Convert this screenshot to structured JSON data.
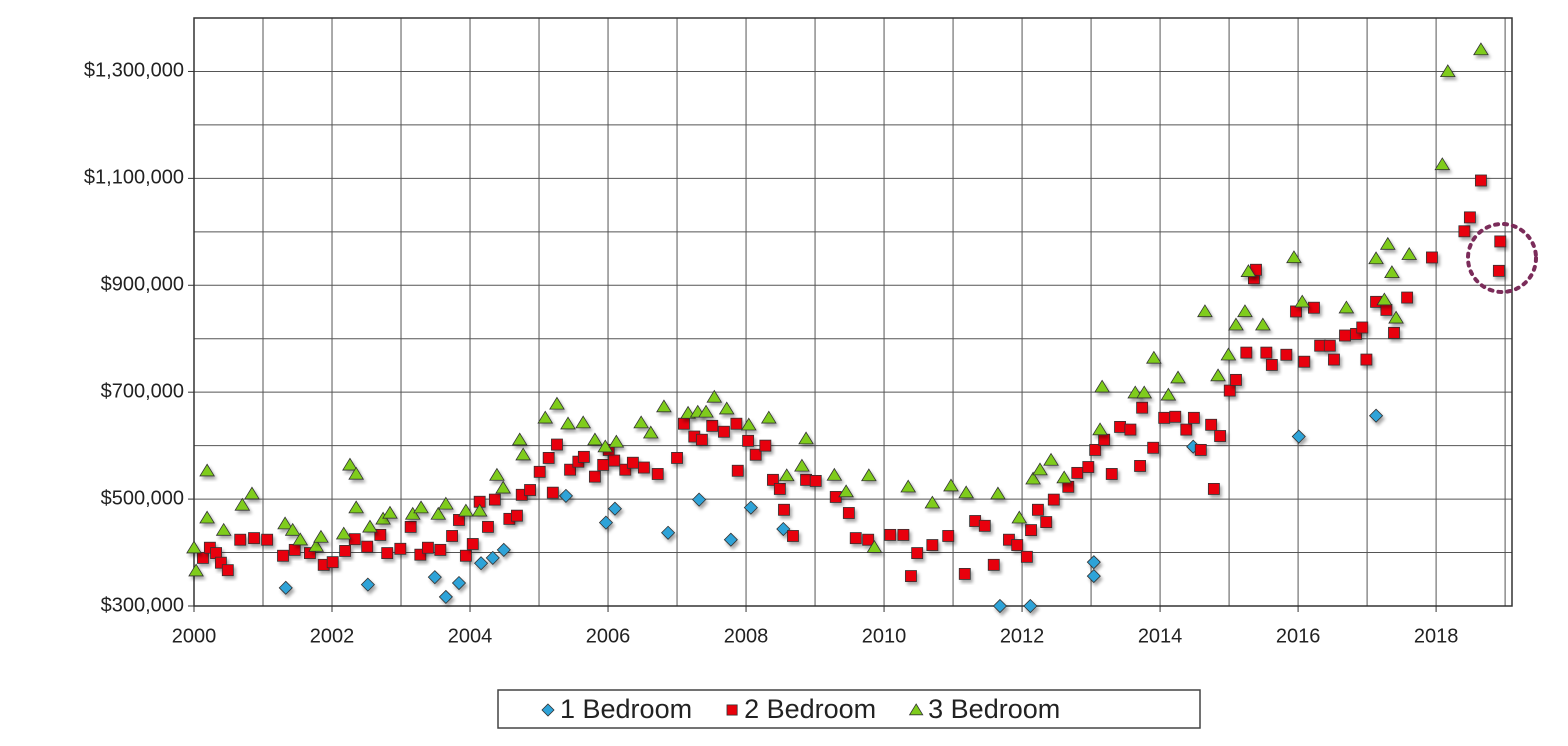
{
  "chart_data": {
    "type": "scatter",
    "xlim": [
      2000,
      2019.1
    ],
    "xticks": [
      2000,
      2002,
      2004,
      2006,
      2008,
      2010,
      2012,
      2014,
      2016,
      2018
    ],
    "xminor": [
      2001,
      2003,
      2005,
      2007,
      2009,
      2011,
      2013,
      2015,
      2017,
      2019
    ],
    "ylim": [
      300000,
      1400000
    ],
    "yticks": [
      {
        "value": 300000,
        "label": "$300,000"
      },
      {
        "value": 500000,
        "label": "$500,000"
      },
      {
        "value": 700000,
        "label": "$700,000"
      },
      {
        "value": 900000,
        "label": "$900,000"
      },
      {
        "value": 1100000,
        "label": "$1,100,000"
      },
      {
        "value": 1300000,
        "label": "$1,300,000"
      }
    ],
    "yminor": [
      400000,
      600000,
      800000,
      1000000,
      1200000
    ],
    "grid": true,
    "legend": "bottom",
    "series": [
      {
        "name": "1 Bedroom",
        "color": "#2ea3d8",
        "marker": "diamond",
        "x": [
          2001.33,
          2002.52,
          2003.49,
          2003.65,
          2003.84,
          2004.16,
          2004.33,
          2004.49,
          2005.39,
          2005.97,
          2006.1,
          2006.87,
          2007.32,
          2007.78,
          2008.07,
          2008.54,
          2011.68,
          2012.12,
          2013.04,
          2013.04,
          2014.48,
          2016.01,
          2017.13
        ],
        "values": [
          334000,
          340000,
          354000,
          317000,
          343000,
          380000,
          390000,
          405000,
          506000,
          456000,
          482000,
          437000,
          499000,
          424000,
          484000,
          444000,
          300000,
          300000,
          382000,
          356000,
          598000,
          617000,
          656000
        ]
      },
      {
        "name": "2 Bedroom",
        "color": "#e8000b",
        "marker": "square",
        "x": [
          2000.13,
          2000.23,
          2000.32,
          2000.39,
          2000.49,
          2000.67,
          2000.87,
          2001.06,
          2001.29,
          2001.46,
          2001.68,
          2001.88,
          2002.01,
          2002.19,
          2002.33,
          2002.51,
          2002.7,
          2002.8,
          2002.99,
          2003.14,
          2003.28,
          2003.39,
          2003.57,
          2003.74,
          2003.84,
          2003.94,
          2004.04,
          2004.14,
          2004.26,
          2004.36,
          2004.57,
          2004.68,
          2004.75,
          2004.87,
          2005.01,
          2005.14,
          2005.2,
          2005.26,
          2005.45,
          2005.57,
          2005.65,
          2005.81,
          2005.93,
          2006.01,
          2006.09,
          2006.25,
          2006.36,
          2006.52,
          2006.72,
          2007,
          2007.1,
          2007.25,
          2007.36,
          2007.51,
          2007.68,
          2007.86,
          2007.88,
          2008.03,
          2008.14,
          2008.28,
          2008.39,
          2008.49,
          2008.55,
          2008.68,
          2008.87,
          2009.01,
          2009.3,
          2009.49,
          2009.59,
          2009.77,
          2010.09,
          2010.28,
          2010.39,
          2010.48,
          2010.7,
          2010.93,
          2011.17,
          2011.32,
          2011.46,
          2011.59,
          2011.81,
          2011.93,
          2012.07,
          2012.13,
          2012.23,
          2012.35,
          2012.46,
          2012.67,
          2012.8,
          2012.96,
          2013.06,
          2013.19,
          2013.3,
          2013.42,
          2013.57,
          2013.71,
          2013.74,
          2013.9,
          2014.06,
          2014.22,
          2014.38,
          2014.49,
          2014.59,
          2014.74,
          2014.78,
          2014.87,
          2015.01,
          2015.1,
          2015.25,
          2015.36,
          2015.39,
          2015.54,
          2015.62,
          2015.83,
          2015.97,
          2016.09,
          2016.23,
          2016.32,
          2016.46,
          2016.52,
          2016.68,
          2016.84,
          2016.93,
          2016.99,
          2017.13,
          2017.28,
          2017.39,
          2017.58,
          2017.94,
          2018.41,
          2018.49,
          2018.65,
          2018.93,
          2018.91
        ],
        "values": [
          390000,
          409000,
          399000,
          381000,
          367000,
          424000,
          427000,
          424000,
          394000,
          405000,
          399000,
          377000,
          382000,
          403000,
          425000,
          411000,
          433000,
          399000,
          407000,
          448000,
          396000,
          409000,
          405000,
          431000,
          461000,
          394000,
          416000,
          495000,
          448000,
          499000,
          463000,
          469000,
          508000,
          517000,
          551000,
          577000,
          512000,
          602000,
          555000,
          570000,
          579000,
          542000,
          564000,
          592000,
          572000,
          555000,
          568000,
          559000,
          547000,
          577000,
          641000,
          617000,
          611000,
          637000,
          626000,
          641000,
          553000,
          609000,
          583000,
          600000,
          536000,
          519000,
          480000,
          431000,
          536000,
          534000,
          504000,
          474000,
          427000,
          424000,
          433000,
          433000,
          356000,
          399000,
          414000,
          431000,
          360000,
          459000,
          450000,
          377000,
          424000,
          414000,
          392000,
          442000,
          480000,
          457000,
          499000,
          523000,
          549000,
          560000,
          592000,
          611000,
          547000,
          635000,
          630000,
          562000,
          671000,
          596000,
          652000,
          654000,
          630000,
          652000,
          592000,
          639000,
          519000,
          618000,
          703000,
          723000,
          774000,
          913000,
          929000,
          774000,
          751000,
          770000,
          851000,
          757000,
          858000,
          787000,
          787000,
          761000,
          806000,
          809000,
          821000,
          761000,
          869000,
          854000,
          811000,
          877000,
          952000,
          1001000,
          1027000,
          1096000,
          982000,
          927000
        ]
      },
      {
        "name": "3 Bedroom",
        "color": "#7fcc1c",
        "marker": "triangle",
        "x": [
          2000,
          2000.03,
          2000.19,
          2000.19,
          2000.43,
          2000.7,
          2000.84,
          2001.32,
          2001.43,
          2001.54,
          2001.77,
          2001.84,
          2002.17,
          2002.26,
          2002.35,
          2002.35,
          2002.55,
          2002.74,
          2002.84,
          2003.17,
          2003.29,
          2003.54,
          2003.65,
          2003.94,
          2004.14,
          2004.39,
          2004.48,
          2004.72,
          2004.77,
          2005.09,
          2005.26,
          2005.42,
          2005.64,
          2005.81,
          2005.96,
          2006.12,
          2006.48,
          2006.62,
          2006.81,
          2007.16,
          2007.3,
          2007.42,
          2007.54,
          2007.72,
          2008.04,
          2008.33,
          2008.59,
          2008.81,
          2008.87,
          2009.28,
          2009.45,
          2009.78,
          2009.86,
          2010.35,
          2010.7,
          2010.97,
          2011.19,
          2011.65,
          2011.96,
          2012.16,
          2012.26,
          2012.42,
          2012.61,
          2013.13,
          2013.16,
          2013.64,
          2013.77,
          2013.91,
          2014.12,
          2014.26,
          2014.65,
          2014.84,
          2014.99,
          2015.1,
          2015.23,
          2015.28,
          2015.49,
          2015.94,
          2016.06,
          2016.7,
          2017.13,
          2017.25,
          2017.3,
          2017.36,
          2017.42,
          2017.61,
          2018.09,
          2018.17,
          2018.65
        ],
        "values": [
          409000,
          366000,
          553000,
          465000,
          442000,
          489000,
          510000,
          454000,
          442000,
          424000,
          412000,
          429000,
          435000,
          564000,
          547000,
          484000,
          448000,
          463000,
          474000,
          472000,
          484000,
          472000,
          491000,
          478000,
          478000,
          545000,
          521000,
          611000,
          583000,
          652000,
          678000,
          641000,
          643000,
          611000,
          598000,
          607000,
          643000,
          624000,
          673000,
          661000,
          663000,
          663000,
          691000,
          669000,
          639000,
          652000,
          544000,
          562000,
          613000,
          545000,
          514000,
          544000,
          410000,
          523000,
          493000,
          525000,
          512000,
          510000,
          465000,
          538000,
          555000,
          573000,
          540000,
          630000,
          710000,
          699000,
          699000,
          764000,
          695000,
          727000,
          851000,
          731000,
          770000,
          826000,
          851000,
          926000,
          826000,
          952000,
          869000,
          858000,
          950000,
          873000,
          977000,
          924000,
          839000,
          958000,
          1126000,
          1300000,
          1341000
        ]
      }
    ]
  }
}
